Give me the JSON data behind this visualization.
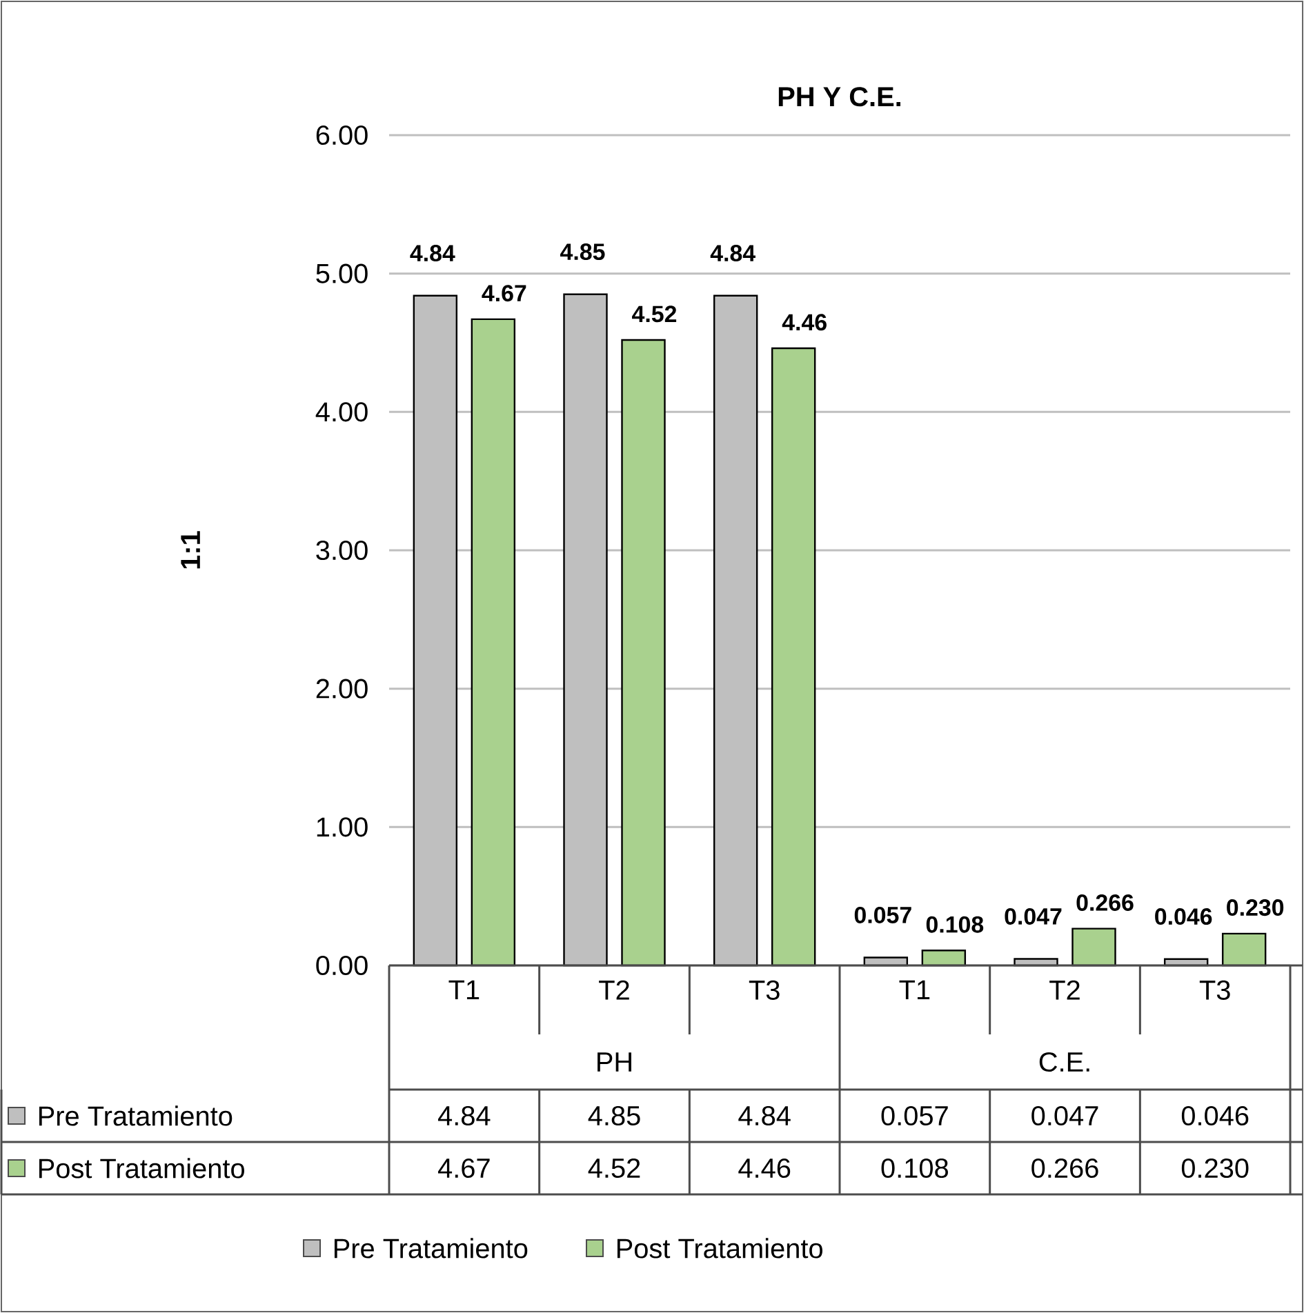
{
  "chart_data": {
    "type": "bar",
    "title": "PH Y C.E.",
    "ylabel": "1:1",
    "categories": [
      "T1",
      "T2",
      "T3",
      "T1",
      "T2",
      "T3"
    ],
    "series": [
      {
        "name": "Pre Tratamiento",
        "color": "#bfbfbf",
        "values": [
          4.84,
          4.85,
          4.84,
          0.057,
          0.047,
          0.046
        ],
        "value_labels": [
          "4.84",
          "4.85",
          "4.84",
          "0.057",
          "0.047",
          "0.046"
        ]
      },
      {
        "name": "Post Tratamiento",
        "color": "#a9d18e",
        "values": [
          4.67,
          4.52,
          4.46,
          0.108,
          0.266,
          0.23
        ],
        "value_labels": [
          "4.67",
          "4.52",
          "4.46",
          "0.108",
          "0.266",
          "0.230"
        ]
      }
    ],
    "annotations": [
      "PH",
      "C.E."
    ],
    "ylim": [
      0,
      6
    ],
    "yticks": [
      {
        "value": 0,
        "label": "0.00"
      },
      {
        "value": 1,
        "label": "1.00"
      },
      {
        "value": 2,
        "label": "2.00"
      },
      {
        "value": 3,
        "label": "3.00"
      },
      {
        "value": 4,
        "label": "4.00"
      },
      {
        "value": 5,
        "label": "5.00"
      },
      {
        "value": 6,
        "label": "6.00"
      }
    ],
    "grid": "y",
    "legend": "bottom"
  }
}
